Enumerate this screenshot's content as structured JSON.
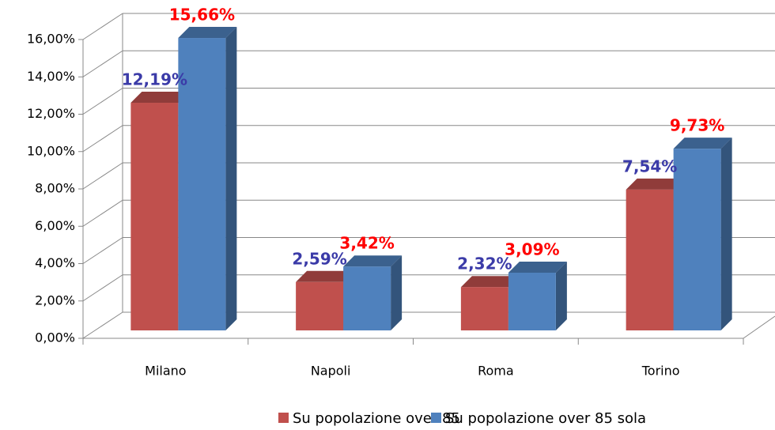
{
  "chart_data": {
    "type": "bar3d",
    "categories": [
      "Milano",
      "Napoli",
      "Roma",
      "Torino"
    ],
    "series": [
      {
        "name": "Su popolazione over 85",
        "color": "#c0504d",
        "label_color": "#3b3ba8",
        "values": [
          12.19,
          2.59,
          2.32,
          7.54
        ],
        "value_labels": [
          "12,19%",
          "2,59%",
          "2,32%",
          "7,54%"
        ]
      },
      {
        "name": "Su popolazione over 85 sola",
        "color": "#4f81bd",
        "label_color": "#ff0000",
        "values": [
          15.66,
          3.42,
          3.09,
          9.73
        ],
        "value_labels": [
          "15,66%",
          "3,42%",
          "3,09%",
          "9,73%"
        ]
      }
    ],
    "ylim": [
      0,
      16
    ],
    "yticks": [
      {
        "value": 0,
        "label": "0,00%"
      },
      {
        "value": 2,
        "label": "2,00%"
      },
      {
        "value": 4,
        "label": "4,00%"
      },
      {
        "value": 6,
        "label": "6,00%"
      },
      {
        "value": 8,
        "label": "8,00%"
      },
      {
        "value": 10,
        "label": "10,00%"
      },
      {
        "value": 12,
        "label": "12,00%"
      },
      {
        "value": 14,
        "label": "14,00%"
      },
      {
        "value": 16,
        "label": "16,00%"
      }
    ],
    "grid": true,
    "legend": "bottom"
  }
}
